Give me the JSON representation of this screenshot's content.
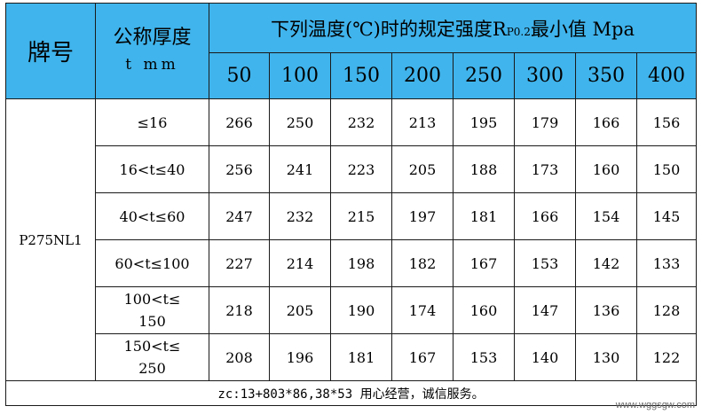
{
  "header": {
    "grade": "牌号",
    "thickness_line1": "公称厚度",
    "thickness_line2": "t mm",
    "title_pre": "下列温度(℃)时的规定强度R",
    "title_sub": "P0.2",
    "title_post": "最小值 Mpa",
    "temperatures": [
      "50",
      "100",
      "150",
      "200",
      "250",
      "300",
      "350",
      "400"
    ]
  },
  "grade": "P275NL1",
  "rows": [
    {
      "t": [
        "≤16"
      ],
      "values": [
        "266",
        "250",
        "232",
        "213",
        "195",
        "179",
        "166",
        "156"
      ]
    },
    {
      "t": [
        "16<t≤40"
      ],
      "values": [
        "256",
        "241",
        "223",
        "205",
        "188",
        "173",
        "160",
        "150"
      ]
    },
    {
      "t": [
        "40<t≤60"
      ],
      "values": [
        "247",
        "232",
        "215",
        "197",
        "181",
        "166",
        "154",
        "145"
      ]
    },
    {
      "t": [
        "60<t≤100"
      ],
      "values": [
        "227",
        "214",
        "198",
        "182",
        "167",
        "153",
        "142",
        "133"
      ]
    },
    {
      "t": [
        "100<t≤",
        "150"
      ],
      "values": [
        "218",
        "205",
        "190",
        "174",
        "160",
        "147",
        "136",
        "128"
      ]
    },
    {
      "t": [
        "150<t≤",
        "250"
      ],
      "values": [
        "208",
        "196",
        "181",
        "167",
        "153",
        "140",
        "130",
        "122"
      ]
    }
  ],
  "footer": "zc:13+803*86,38*53 用心经营，诚信服务。",
  "watermark": "www.wggsgw.com"
}
